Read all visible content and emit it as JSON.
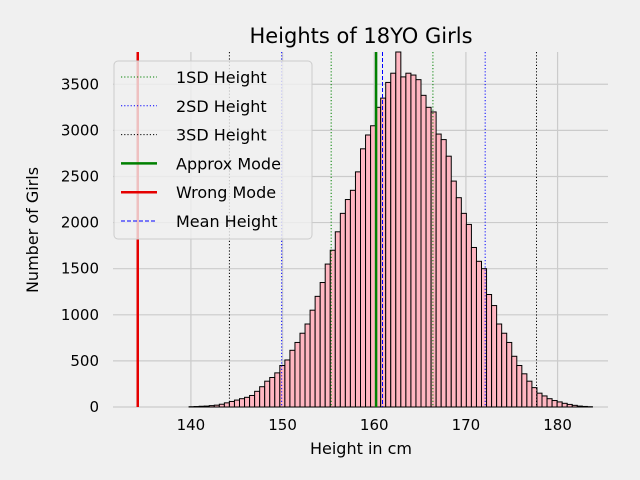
{
  "chart_data": {
    "type": "bar",
    "title": "Heights of 18YO Girls",
    "xlabel": "Height in cm",
    "ylabel": "Number of Girls",
    "xlim": [
      131.5,
      185.5
    ],
    "ylim": [
      0,
      3850
    ],
    "xticks": [
      140,
      150,
      160,
      170,
      180
    ],
    "yticks": [
      0,
      500,
      1000,
      1500,
      2000,
      2500,
      3000,
      3500
    ],
    "grid": true,
    "legend_position": "top-left",
    "bin_start": 139.8,
    "bin_width": 0.55,
    "values": [
      3,
      5,
      8,
      10,
      15,
      20,
      30,
      45,
      60,
      75,
      90,
      105,
      125,
      170,
      220,
      280,
      320,
      370,
      450,
      510,
      615,
      700,
      800,
      900,
      1050,
      1200,
      1350,
      1550,
      1700,
      1900,
      2100,
      2250,
      2350,
      2550,
      2800,
      2950,
      3050,
      3250,
      3350,
      3520,
      3620,
      3850,
      3580,
      3620,
      3600,
      3550,
      3380,
      3250,
      3200,
      2960,
      2900,
      2720,
      2450,
      2270,
      2100,
      1980,
      1730,
      1580,
      1500,
      1220,
      1100,
      900,
      800,
      700,
      550,
      450,
      360,
      280,
      210,
      150,
      120,
      90,
      70,
      55,
      40,
      28,
      18,
      10,
      6,
      3
    ],
    "vlines": [
      {
        "label": "1SD Height",
        "x": [
          155.3,
          166.4
        ],
        "color": "#008000",
        "style": "dotted"
      },
      {
        "label": "2SD Height",
        "x": [
          149.9,
          172.1
        ],
        "color": "#0000ff",
        "style": "dotted"
      },
      {
        "label": "3SD Height",
        "x": [
          144.2,
          177.7
        ],
        "color": "#000000",
        "style": "dotted"
      },
      {
        "label": "Approx Mode",
        "x": [
          160.2
        ],
        "color": "#008000",
        "style": "solid"
      },
      {
        "label": "Wrong Mode",
        "x": [
          134.2
        ],
        "color": "#e50000",
        "style": "solid"
      },
      {
        "label": "Mean Height",
        "x": [
          160.9
        ],
        "color": "#0000ff",
        "style": "dashed"
      }
    ],
    "bar_color": "#ffb6c1",
    "bar_edge_color": "#000000"
  }
}
